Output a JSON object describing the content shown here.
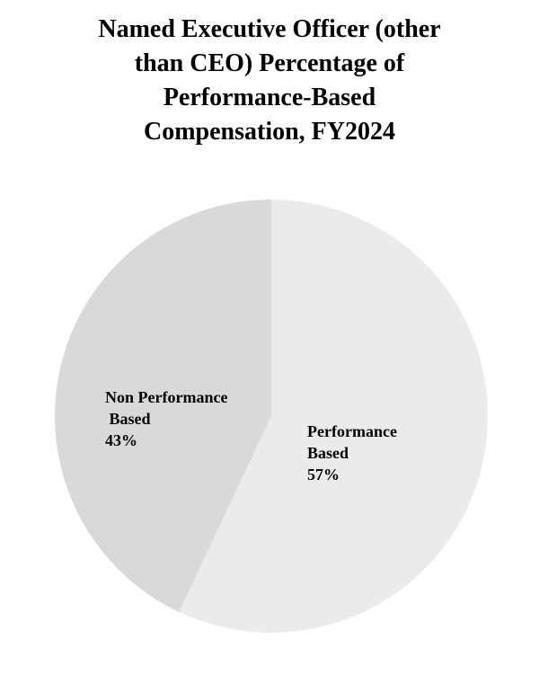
{
  "chart_data": {
    "type": "pie",
    "title": "Named Executive Officer (other\nthan CEO) Percentage of\nPerformance-Based\nCompensation, FY2024",
    "start_angle_deg": 0,
    "direction": "clockwise",
    "legend": "none",
    "slices": [
      {
        "name": "Performance Based",
        "value": 57,
        "color": "#ebebeb",
        "label": "Performance\nBased\n57%"
      },
      {
        "name": "Non Performance Based",
        "value": 43,
        "color": "#d9d9d9",
        "label": "Non Performance\n Based\n43%"
      }
    ]
  }
}
